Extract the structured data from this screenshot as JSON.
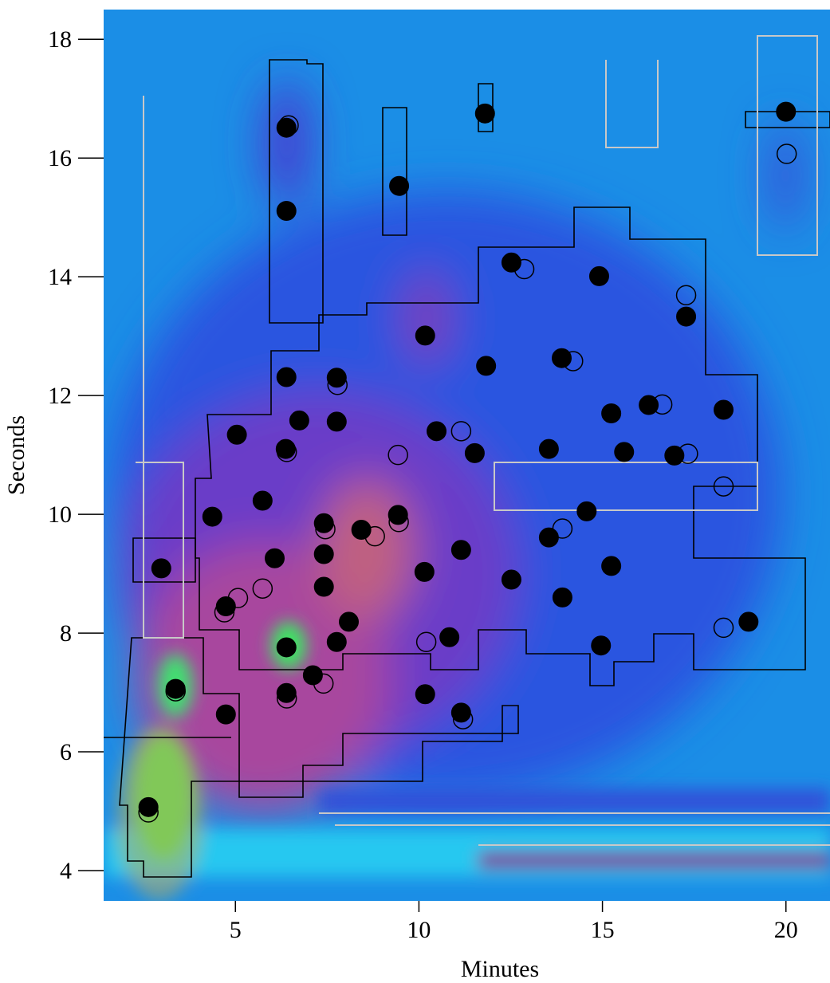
{
  "chart_data": {
    "type": "scatter",
    "xlabel": "Minutes",
    "ylabel": "Seconds",
    "xlim": [
      1.41,
      21.2
    ],
    "ylim": [
      3.49,
      18.5
    ],
    "xticks": [
      5,
      10,
      15,
      20
    ],
    "yticks": [
      4,
      6,
      8,
      10,
      12,
      14,
      16,
      18
    ],
    "background": "heatmap",
    "series": [
      {
        "color": "#000000",
        "marker": "filled",
        "x": [
          6.39,
          6.39,
          9.46,
          11.8,
          20.0,
          12.52,
          14.91,
          17.28,
          10.17,
          11.83,
          13.89,
          6.39,
          7.76,
          6.74,
          7.76,
          5.04,
          6.37,
          10.48,
          11.52,
          13.54,
          15.24,
          15.59,
          16.26,
          16.96,
          18.3,
          4.37,
          5.74,
          7.41,
          8.43,
          9.43,
          14.57,
          13.54,
          2.98,
          6.07,
          7.41,
          7.41,
          11.15,
          10.15,
          12.52,
          15.24,
          13.91,
          4.74,
          8.09,
          6.39,
          7.76,
          10.83,
          14.96,
          18.98,
          3.37,
          7.11,
          6.39,
          4.74,
          10.17,
          11.15,
          2.63
        ],
        "values": [
          16.51,
          15.11,
          15.53,
          16.75,
          16.78,
          14.24,
          14.01,
          13.33,
          13.01,
          12.5,
          12.63,
          12.31,
          12.3,
          11.58,
          11.56,
          11.34,
          11.1,
          11.4,
          11.03,
          11.1,
          11.7,
          11.05,
          11.84,
          10.99,
          11.76,
          9.96,
          10.23,
          9.85,
          9.74,
          9.99,
          10.05,
          9.61,
          9.09,
          9.26,
          9.33,
          8.78,
          9.4,
          9.03,
          8.9,
          9.13,
          8.6,
          8.45,
          8.19,
          7.76,
          7.85,
          7.93,
          7.79,
          8.19,
          7.06,
          7.29,
          6.99,
          6.63,
          6.97,
          6.66,
          5.07
        ]
      },
      {
        "color": "#000000",
        "marker": "open",
        "x": [
          6.45,
          20.02,
          17.28,
          12.87,
          14.2,
          16.63,
          17.33,
          18.3,
          11.15,
          9.43,
          13.91,
          8.8,
          5.74,
          5.07,
          18.3,
          7.78,
          6.4,
          7.45,
          10.2,
          11.2,
          4.7,
          3.37,
          2.63,
          6.4,
          7.4,
          9.45
        ],
        "values": [
          16.55,
          16.07,
          13.69,
          14.13,
          12.58,
          11.85,
          11.02,
          10.47,
          11.4,
          11.0,
          9.76,
          9.63,
          8.75,
          8.59,
          8.09,
          12.18,
          11.05,
          9.75,
          7.85,
          6.55,
          8.35,
          7.02,
          4.98,
          6.9,
          7.15,
          9.87
        ]
      }
    ]
  }
}
